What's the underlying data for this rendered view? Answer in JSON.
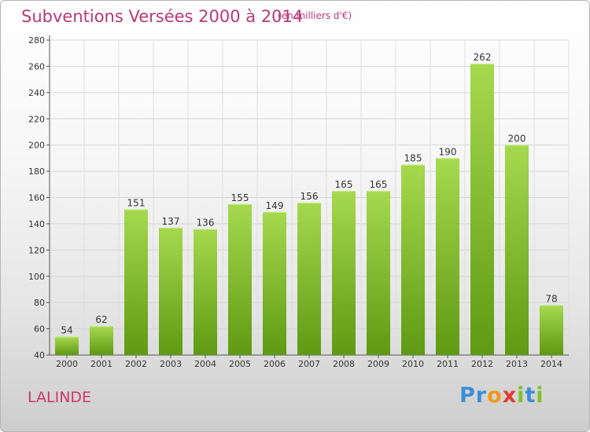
{
  "title": "Subventions Versées 2000 à 2014",
  "subtitle": "(en milliers d'€)",
  "commune": "LALINDE",
  "logo": {
    "letters": [
      {
        "ch": "P",
        "color": "#3a8ed8"
      },
      {
        "ch": "r",
        "color": "#3a8ed8"
      },
      {
        "ch": "o",
        "color": "#f09a1a"
      },
      {
        "ch": "x",
        "color": "#e23a2e"
      },
      {
        "ch": "i",
        "color": "#7fbf2a"
      },
      {
        "ch": "t",
        "color": "#3a8ed8"
      },
      {
        "ch": "i",
        "color": "#7fbf2a"
      }
    ]
  },
  "colors": {
    "bar_light": "#a6d94e",
    "bar_dark": "#5e9a12",
    "accent": "#b83a77"
  },
  "chart_data": {
    "type": "bar",
    "title": "Subventions Versées 2000 à 2014",
    "subtitle": "(en milliers d'€)",
    "categories": [
      "2000",
      "2001",
      "2002",
      "2003",
      "2004",
      "2005",
      "2006",
      "2007",
      "2008",
      "2009",
      "2010",
      "2011",
      "2012",
      "2013",
      "2014"
    ],
    "values": [
      54,
      62,
      151,
      137,
      136,
      155,
      149,
      156,
      165,
      165,
      185,
      190,
      262,
      200,
      78
    ],
    "ylim": [
      40,
      280
    ],
    "yticks": [
      40,
      60,
      80,
      100,
      120,
      140,
      160,
      180,
      200,
      220,
      240,
      260,
      280
    ],
    "grid": true,
    "legend": "none"
  }
}
